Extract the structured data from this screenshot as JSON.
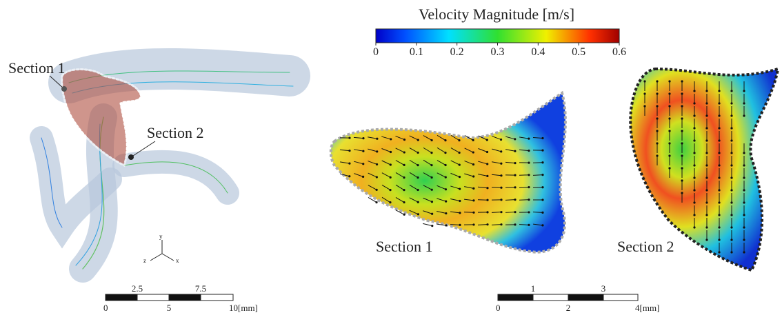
{
  "colorbar": {
    "title": "Velocity Magnitude [m/s]",
    "ticks": [
      0,
      0.1,
      0.2,
      0.3,
      0.4,
      0.5,
      0.6
    ]
  },
  "model": {
    "section_1": "Section 1",
    "section_2": "Section 2",
    "axes": {
      "x": "x",
      "y": "y",
      "z": "z"
    }
  },
  "scale_left": {
    "top": [
      "2.5",
      "7.5"
    ],
    "bottom": [
      "0",
      "5",
      "10[mm]"
    ]
  },
  "section_views": {
    "section_1": "Section 1",
    "section_2": "Section 2"
  },
  "scale_right": {
    "top": [
      "1",
      "3"
    ],
    "bottom": [
      "0",
      "2",
      "4[mm]"
    ]
  }
}
